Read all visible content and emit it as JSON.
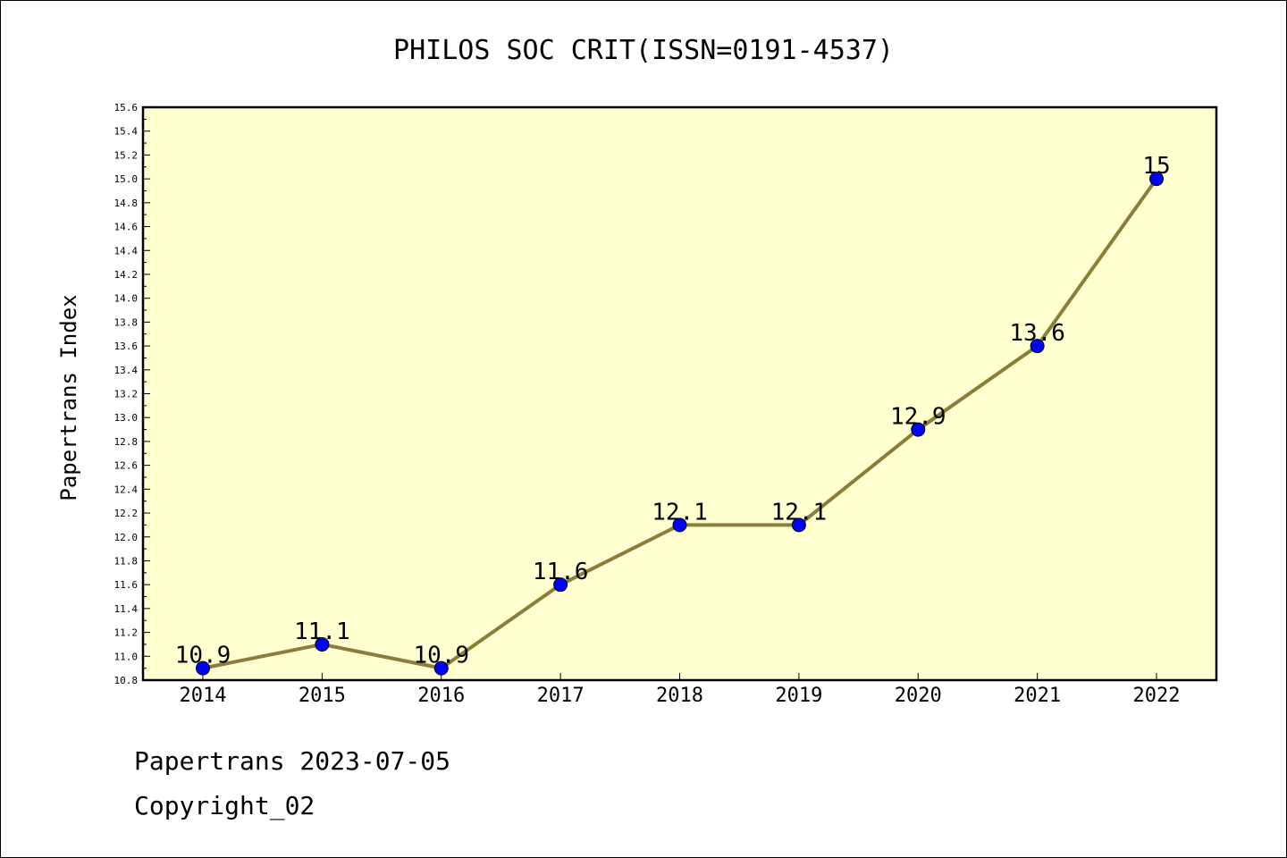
{
  "chart_data": {
    "type": "line",
    "title": "PHILOS SOC CRIT(ISSN=0191-4537)",
    "xlabel": "",
    "ylabel": "Papertrans Index",
    "categories": [
      "2014",
      "2015",
      "2016",
      "2017",
      "2018",
      "2019",
      "2020",
      "2021",
      "2022"
    ],
    "values": [
      10.9,
      11.1,
      10.9,
      11.6,
      12.1,
      12.1,
      12.9,
      13.6,
      15.0
    ],
    "data_labels": [
      "10.9",
      "11.1",
      "10.9",
      "11.6",
      "12.1",
      "12.1",
      "12.9",
      "13.6",
      "15"
    ],
    "ylim": [
      10.8,
      15.6
    ],
    "yticks": [
      "10.8",
      "11.0",
      "11.2",
      "11.4",
      "11.6",
      "11.8",
      "12.0",
      "12.2",
      "12.4",
      "12.6",
      "12.8",
      "13.0",
      "13.2",
      "13.4",
      "13.6",
      "13.8",
      "14.0",
      "14.2",
      "14.4",
      "14.6",
      "14.8",
      "15.0",
      "15.2",
      "15.4",
      "15.6"
    ],
    "grid": false,
    "colors": {
      "plot_background": "#ffffd0",
      "line": "#8b7d3a",
      "marker": "#0000ff"
    }
  },
  "footer": {
    "line1": "Papertrans 2023-07-05",
    "line2": "Copyright_02"
  }
}
